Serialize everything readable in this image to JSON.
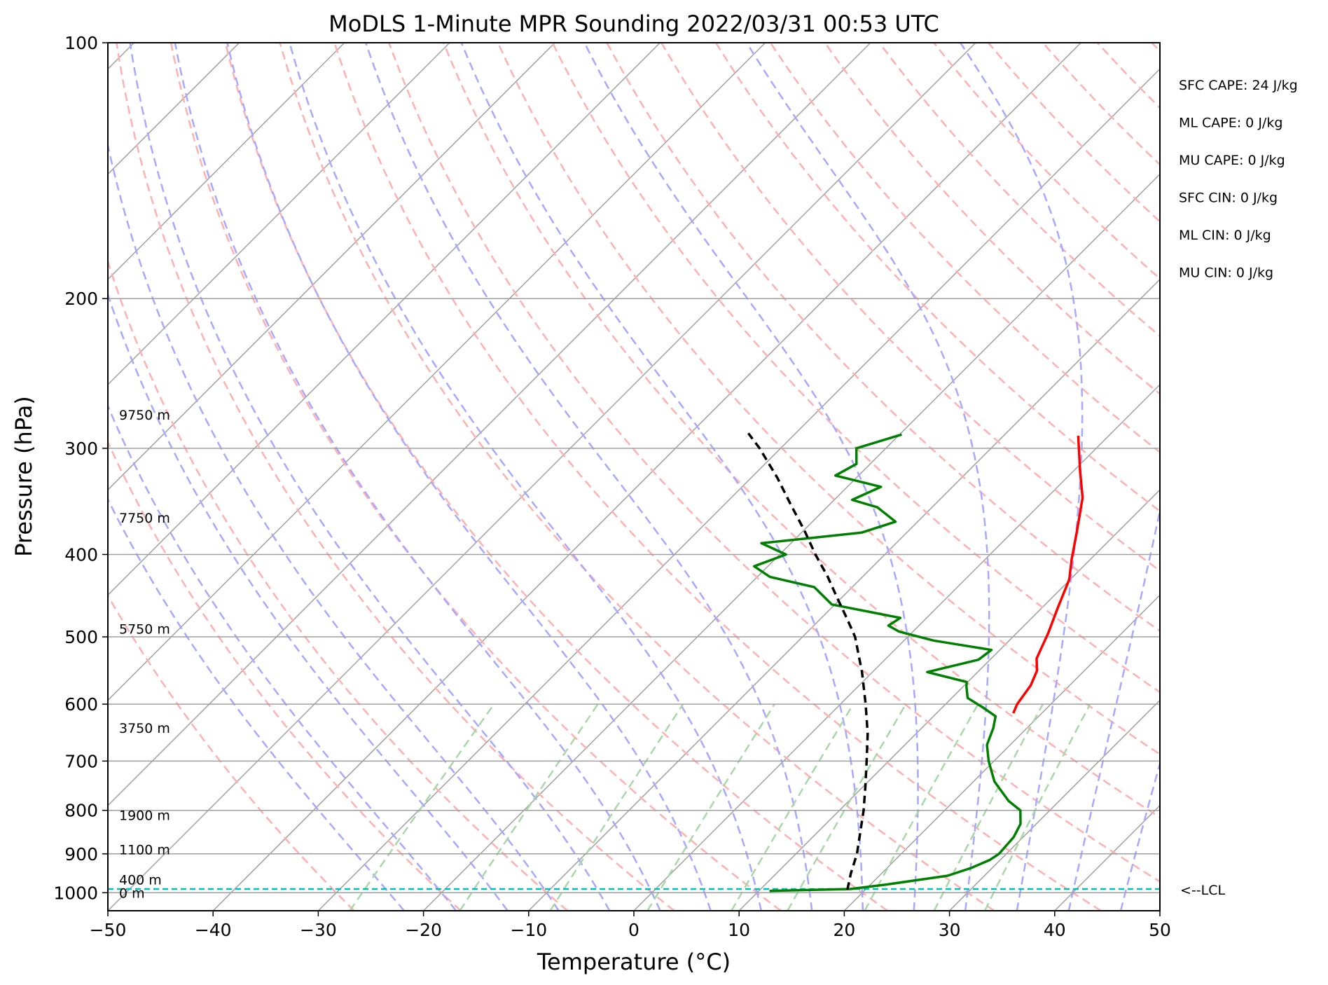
{
  "chart_data": {
    "type": "line",
    "title": "MoDLS 1-Minute MPR Sounding 2022/03/31 00:53 UTC",
    "xlabel": "Temperature (°C)",
    "ylabel": "Pressure (hPa)",
    "xlim": [
      -50,
      50
    ],
    "ylim": [
      1050,
      100
    ],
    "y_scale": "log",
    "x_ticks": [
      "−50",
      "−40",
      "−30",
      "−20",
      "−10",
      "0",
      "10",
      "20",
      "30",
      "40",
      "50"
    ],
    "x_tick_values": [
      -50,
      -40,
      -30,
      -20,
      -10,
      0,
      10,
      20,
      30,
      40,
      50
    ],
    "y_ticks": [
      "100",
      "200",
      "300",
      "400",
      "500",
      "600",
      "700",
      "800",
      "900",
      "1000"
    ],
    "y_tick_values": [
      100,
      200,
      300,
      400,
      500,
      600,
      700,
      800,
      900,
      1000
    ],
    "grid": true,
    "colors": {
      "temperature": "#ff0000",
      "dewpoint": "#008000",
      "parcel": "#000000",
      "lcl": "#00bfbf",
      "isotherm": "#a0a0a0",
      "dry_adiabat": "#ffb0b0",
      "moist_adiabat": "#a8a8ff",
      "mixing_ratio": "#a8d8a8"
    },
    "series": [
      {
        "key": "temperature",
        "points": [
          [
            17.3,
            615
          ],
          [
            16.8,
            600
          ],
          [
            16.3,
            570
          ],
          [
            15.5,
            548
          ],
          [
            14.3,
            530
          ],
          [
            13.0,
            495
          ],
          [
            11.5,
            462
          ],
          [
            9.9,
            428
          ],
          [
            8.2,
            405
          ],
          [
            6.0,
            375
          ],
          [
            3.4,
            343
          ],
          [
            0.5,
            318
          ],
          [
            -2.9,
            290
          ]
        ]
      },
      {
        "key": "dewpoint",
        "points": [
          [
            11.0,
            995
          ],
          [
            18.5,
            990
          ],
          [
            21.5,
            978
          ],
          [
            26.5,
            955
          ],
          [
            28.0,
            935
          ],
          [
            29.0,
            915
          ],
          [
            29.3,
            900
          ],
          [
            29.2,
            880
          ],
          [
            29.1,
            860
          ],
          [
            28.5,
            830
          ],
          [
            27.2,
            800
          ],
          [
            25.2,
            780
          ],
          [
            22.0,
            740
          ],
          [
            19.5,
            700
          ],
          [
            17.8,
            670
          ],
          [
            16.8,
            640
          ],
          [
            15.9,
            620
          ],
          [
            13.8,
            605
          ],
          [
            11.5,
            590
          ],
          [
            10.3,
            572
          ],
          [
            9.9,
            565
          ],
          [
            5.2,
            550
          ],
          [
            8.9,
            532
          ],
          [
            9.2,
            518
          ],
          [
            2.8,
            505
          ],
          [
            -1.3,
            493
          ],
          [
            -2.9,
            485
          ],
          [
            -2.5,
            475
          ],
          [
            -10.3,
            458
          ],
          [
            -13.6,
            437
          ],
          [
            -18.8,
            425
          ],
          [
            -21.3,
            413
          ],
          [
            -19.4,
            400
          ],
          [
            -22.8,
            388
          ],
          [
            -14.3,
            377
          ],
          [
            -12.1,
            366
          ],
          [
            -15.2,
            352
          ],
          [
            -18.3,
            345
          ],
          [
            -16.8,
            333
          ],
          [
            -22.2,
            323
          ],
          [
            -21.3,
            313
          ],
          [
            -22.8,
            300
          ],
          [
            -19.8,
            289
          ]
        ]
      },
      {
        "key": "parcel",
        "points": [
          [
            18.3,
            992
          ],
          [
            17.1,
            950
          ],
          [
            15.8,
            900
          ],
          [
            14.1,
            850
          ],
          [
            12.3,
            800
          ],
          [
            10.2,
            750
          ],
          [
            7.9,
            700
          ],
          [
            5.4,
            650
          ],
          [
            2.4,
            600
          ],
          [
            -1.0,
            550
          ],
          [
            -5.0,
            500
          ],
          [
            -7.6,
            475
          ],
          [
            -10.4,
            450
          ],
          [
            -13.3,
            425
          ],
          [
            -16.6,
            400
          ],
          [
            -19.9,
            375
          ],
          [
            -23.6,
            350
          ],
          [
            -27.5,
            325
          ],
          [
            -32.0,
            300
          ],
          [
            -34.5,
            288
          ]
        ]
      }
    ],
    "lcl_pressure": 990,
    "lcl_label": "<--LCL",
    "height_labels": [
      {
        "text": "9750 m",
        "pressure": 274
      },
      {
        "text": "7750 m",
        "pressure": 362
      },
      {
        "text": "5750 m",
        "pressure": 489
      },
      {
        "text": "3750 m",
        "pressure": 640
      },
      {
        "text": "1900 m",
        "pressure": 810
      },
      {
        "text": "1100 m",
        "pressure": 889
      },
      {
        "text": "400 m",
        "pressure": 965
      },
      {
        "text": "0 m",
        "pressure": 1000
      }
    ],
    "indices": [
      "SFC CAPE: 24 J/kg",
      "ML CAPE: 0 J/kg",
      "MU CAPE: 0 J/kg",
      "SFC CIN: 0 J/kg",
      "ML CIN: 0 J/kg",
      "MU CIN: 0 J/kg"
    ]
  }
}
